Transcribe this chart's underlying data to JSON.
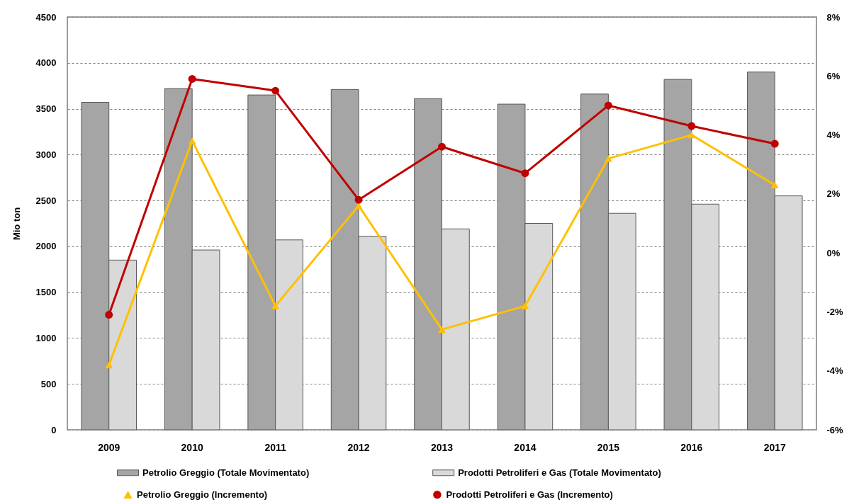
{
  "chart_data": {
    "type": "bar",
    "ylabel": "Mio ton",
    "categories": [
      "2009",
      "2010",
      "2011",
      "2012",
      "2013",
      "2014",
      "2015",
      "2016",
      "2017"
    ],
    "series": [
      {
        "name": "Petrolio Greggio (Totale Movimentato)",
        "color": "#a5a5a5",
        "values": [
          3570,
          3720,
          3650,
          3710,
          3610,
          3550,
          3660,
          3820,
          3900
        ]
      },
      {
        "name": "Prodotti Petroliferi e Gas (Totale Movimentato)",
        "color": "#d9d9d9",
        "values": [
          1850,
          1960,
          2070,
          2110,
          2190,
          2250,
          2360,
          2460,
          2550
        ]
      },
      {
        "name": "Petrolio Greggio (Incremento)",
        "type": "line",
        "axis": "y2",
        "color": "#ffc000",
        "marker": "triangle",
        "values": [
          -3.8,
          3.8,
          -1.8,
          1.6,
          -2.6,
          -1.8,
          3.2,
          4.0,
          2.3
        ]
      },
      {
        "name": "Prodotti Petroliferi e Gas (Incremento)",
        "type": "line",
        "axis": "y2",
        "color": "#c00000",
        "marker": "circle",
        "values": [
          -2.1,
          5.9,
          5.5,
          1.8,
          3.6,
          2.7,
          5.0,
          4.3,
          3.7
        ]
      }
    ],
    "ylim": [
      0,
      4500
    ],
    "yticks": [
      0,
      500,
      1000,
      1500,
      2000,
      2500,
      3000,
      3500,
      4000,
      4500
    ],
    "y2lim": [
      -6,
      8
    ],
    "y2ticks": [
      {
        "value": -6,
        "label": "-6%"
      },
      {
        "value": -4,
        "label": "-4%"
      },
      {
        "value": -2,
        "label": "-2%"
      },
      {
        "value": 0,
        "label": "0%"
      },
      {
        "value": 2,
        "label": "2%"
      },
      {
        "value": 4,
        "label": "4%"
      },
      {
        "value": 6,
        "label": "6%"
      },
      {
        "value": 8,
        "label": "8%"
      }
    ],
    "grid": "y",
    "legend": "bottom"
  }
}
